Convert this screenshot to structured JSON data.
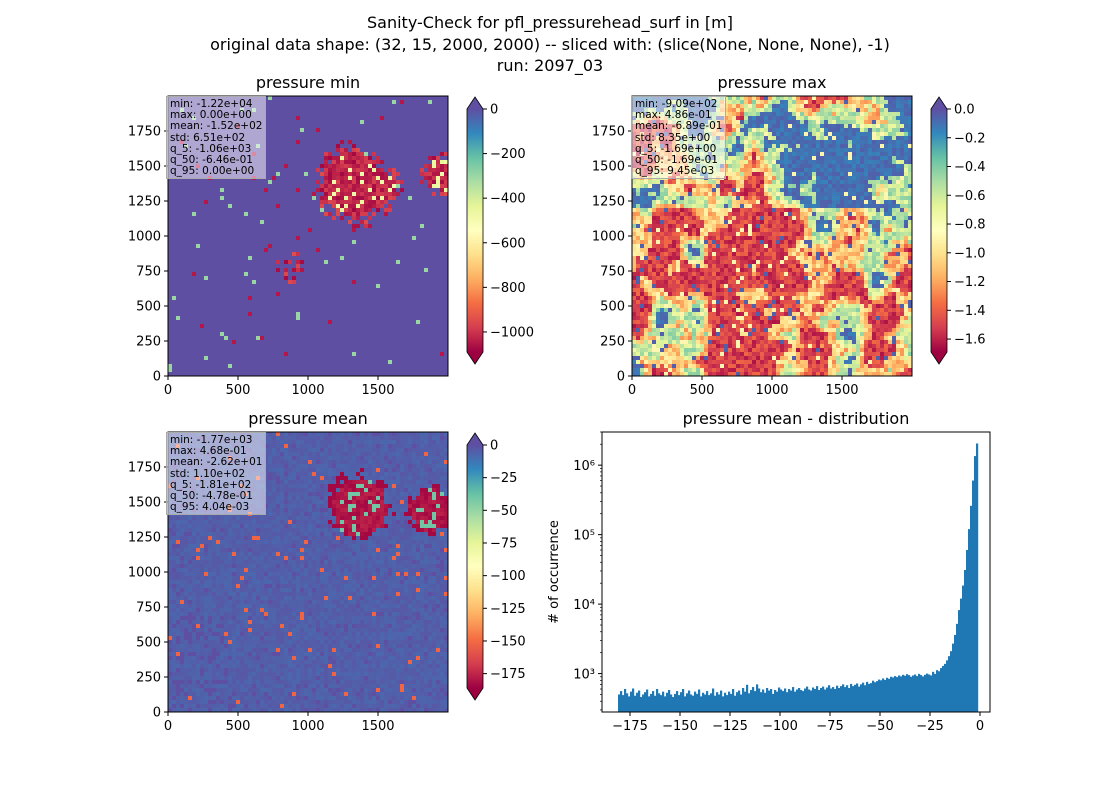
{
  "figure": {
    "suptitle_lines": [
      "Sanity-Check for pfl_pressurehead_surf in [m]",
      "original data shape: (32, 15, 2000, 2000) -- sliced with: (slice(None, None, None), -1)",
      "run: 2097_03"
    ]
  },
  "colors": {
    "spectral": [
      "#9e0142",
      "#d53e4f",
      "#f46d43",
      "#fdae61",
      "#fee08b",
      "#ffffbf",
      "#e6f598",
      "#abdda4",
      "#66c2a5",
      "#3288bd",
      "#5e4fa2"
    ],
    "hist_bar": "#1f77b4"
  },
  "chart_data": [
    {
      "type": "heatmap",
      "title": "pressure min",
      "xlim": [
        0,
        2000
      ],
      "ylim": [
        0,
        2000
      ],
      "xticks": [
        0,
        500,
        1000,
        1500
      ],
      "yticks": [
        0,
        250,
        500,
        750,
        1000,
        1250,
        1500,
        1750
      ],
      "colorbar": {
        "range": [
          -1090,
          0
        ],
        "ticks": [
          0,
          -200,
          -400,
          -600,
          -800,
          -1000
        ],
        "labels": [
          "0",
          "−200",
          "−400",
          "−600",
          "−800",
          "−1000"
        ],
        "extend": "both"
      },
      "stats": [
        "min: -1.22e+04",
        "max: 0.00e+00",
        "mean: -1.52e+02",
        "std: 6.51e+02",
        "q_5: -1.06e+03",
        "q_50: -6.46e-01",
        "q_95: 0.00e+00"
      ]
    },
    {
      "type": "heatmap",
      "title": "pressure max",
      "xlim": [
        0,
        2000
      ],
      "ylim": [
        0,
        2000
      ],
      "xticks": [
        0,
        500,
        1000,
        1500
      ],
      "yticks": [
        0,
        250,
        500,
        750,
        1000,
        1250,
        1500,
        1750
      ],
      "colorbar": {
        "range": [
          -1.69,
          0.0
        ],
        "ticks": [
          0.0,
          -0.2,
          -0.4,
          -0.6,
          -0.8,
          -1.0,
          -1.2,
          -1.4,
          -1.6
        ],
        "labels": [
          "0.0",
          "−0.2",
          "−0.4",
          "−0.6",
          "−0.8",
          "−1.0",
          "−1.2",
          "−1.4",
          "−1.6"
        ],
        "extend": "both"
      },
      "stats": [
        "min: -9.09e+02",
        "max: 4.86e-01",
        "mean: -6.89e-01",
        "std: 8.35e+00",
        "q_5: -1.69e+00",
        "q_50: -1.69e-01",
        "q_95: 9.45e-03"
      ]
    },
    {
      "type": "heatmap",
      "title": "pressure mean",
      "xlim": [
        0,
        2000
      ],
      "ylim": [
        0,
        2000
      ],
      "xticks": [
        0,
        500,
        1000,
        1500
      ],
      "yticks": [
        0,
        250,
        500,
        750,
        1000,
        1250,
        1500,
        1750
      ],
      "colorbar": {
        "range": [
          -186,
          0
        ],
        "ticks": [
          0,
          -25,
          -50,
          -75,
          -100,
          -125,
          -150,
          -175
        ],
        "labels": [
          "0",
          "−25",
          "−50",
          "−75",
          "−100",
          "−125",
          "−150",
          "−175"
        ],
        "extend": "both"
      },
      "stats": [
        "min: -1.77e+03",
        "max: 4.68e-01",
        "mean: -2.62e+01",
        "std: 1.10e+02",
        "q_5: -1.81e+02",
        "q_50: -4.78e-01",
        "q_95: 4.04e-03"
      ]
    },
    {
      "type": "bar",
      "title": "pressure mean - distribution",
      "xlabel": "",
      "ylabel": "# of occurrence",
      "xlim": [
        -189,
        5
      ],
      "ylim": [
        280,
        3000000
      ],
      "yscale": "log",
      "xticks": [
        -175,
        -150,
        -125,
        -100,
        -75,
        -50,
        -25,
        0
      ],
      "xtick_labels": [
        "−175",
        "−150",
        "−125",
        "−100",
        "−75",
        "−50",
        "−25",
        "0"
      ],
      "yticks": [
        1000,
        10000,
        100000,
        1000000
      ],
      "ytick_labels": [
        "10³",
        "10⁴",
        "10⁵",
        "10⁶"
      ],
      "bin_width": 1.0,
      "bin_edges": [
        -181,
        0
      ],
      "values": [
        500,
        560,
        490,
        600,
        520,
        470,
        550,
        610,
        480,
        530,
        570,
        460,
        500,
        540,
        590,
        470,
        510,
        560,
        480,
        600,
        520,
        490,
        550,
        470,
        530,
        580,
        500,
        460,
        510,
        560,
        490,
        540,
        600,
        470,
        520,
        570,
        500,
        480,
        550,
        510,
        590,
        470,
        530,
        500,
        560,
        490,
        520,
        610,
        480,
        540,
        500,
        570,
        470,
        530,
        490,
        550,
        510,
        600,
        480,
        540,
        570,
        500,
        620,
        550,
        690,
        520,
        580,
        640,
        560,
        700,
        610,
        540,
        590,
        530,
        620,
        570,
        600,
        510,
        580,
        550,
        630,
        590,
        560,
        610,
        540,
        600,
        570,
        640,
        550,
        590,
        620,
        580,
        560,
        610,
        650,
        590,
        570,
        630,
        600,
        660,
        580,
        620,
        650,
        590,
        630,
        680,
        610,
        640,
        600,
        670,
        620,
        660,
        700,
        640,
        680,
        620,
        710,
        660,
        690,
        720,
        650,
        700,
        740,
        680,
        760,
        710,
        730,
        790,
        750,
        780,
        820,
        800,
        850,
        810,
        870,
        840,
        900,
        880,
        920,
        890,
        940,
        910,
        960,
        930,
        980,
        950,
        900,
        940,
        970,
        920,
        990,
        950,
        910,
        960,
        1000,
        970,
        940,
        1060,
        990,
        1120,
        1080,
        1200,
        1290,
        1380,
        1550,
        1780,
        2100,
        2700,
        3600,
        5200,
        8200,
        12000,
        18500,
        31000,
        60000,
        120000,
        260000,
        600000,
        1350000,
        2050000
      ]
    }
  ]
}
